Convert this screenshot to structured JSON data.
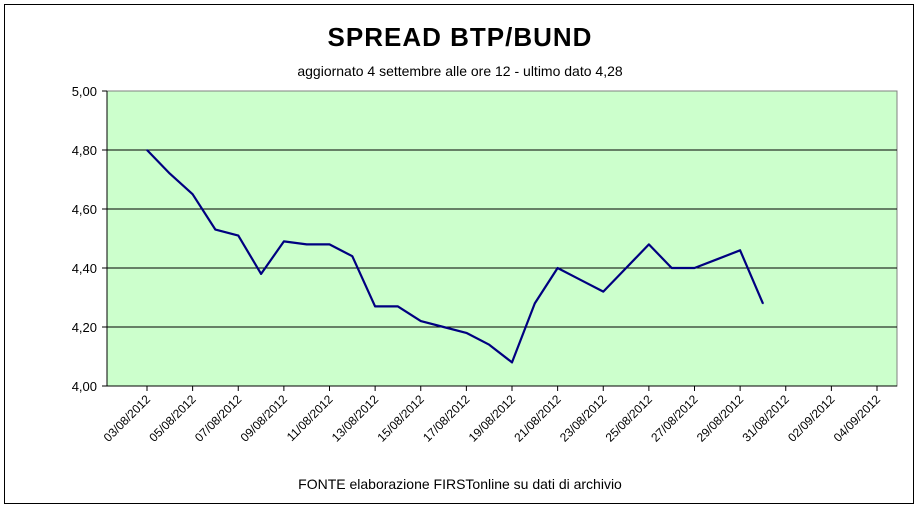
{
  "chart_data": {
    "type": "line",
    "title": "SPREAD  BTP/BUND",
    "subtitle": "aggiornato 4 settembre alle ore 12 - ultimo dato 4,28",
    "source_note": "FONTE elaborazione FIRSTonline su dati di archivio",
    "xlabel": "",
    "ylabel": "",
    "ylim": [
      4.0,
      5.0
    ],
    "y_ticks": [
      "4,00",
      "4,20",
      "4,40",
      "4,60",
      "4,80",
      "5,00"
    ],
    "x_tick_labels": [
      "03/08/2012",
      "05/08/2012",
      "07/08/2012",
      "09/08/2012",
      "11/08/2012",
      "13/08/2012",
      "15/08/2012",
      "17/08/2012",
      "19/08/2012",
      "21/08/2012",
      "23/08/2012",
      "25/08/2012",
      "27/08/2012",
      "29/08/2012",
      "31/08/2012",
      "02/09/2012",
      "04/09/2012"
    ],
    "grid": true,
    "legend": "none",
    "plot_background": "#ccffcc",
    "line_color": "#000080",
    "series": [
      {
        "points": [
          {
            "x": "03/08/2012",
            "y": 4.8
          },
          {
            "x": "04/08/2012",
            "y": 4.72
          },
          {
            "x": "05/08/2012",
            "y": 4.65
          },
          {
            "x": "06/08/2012",
            "y": 4.53
          },
          {
            "x": "07/08/2012",
            "y": 4.51
          },
          {
            "x": "08/08/2012",
            "y": 4.38
          },
          {
            "x": "09/08/2012",
            "y": 4.49
          },
          {
            "x": "10/08/2012",
            "y": 4.48
          },
          {
            "x": "11/08/2012",
            "y": 4.48
          },
          {
            "x": "12/08/2012",
            "y": 4.44
          },
          {
            "x": "13/08/2012",
            "y": 4.27
          },
          {
            "x": "14/08/2012",
            "y": 4.27
          },
          {
            "x": "15/08/2012",
            "y": 4.22
          },
          {
            "x": "16/08/2012",
            "y": 4.2
          },
          {
            "x": "17/08/2012",
            "y": 4.18
          },
          {
            "x": "18/08/2012",
            "y": 4.14
          },
          {
            "x": "19/08/2012",
            "y": 4.08
          },
          {
            "x": "20/08/2012",
            "y": 4.28
          },
          {
            "x": "21/08/2012",
            "y": 4.4
          },
          {
            "x": "22/08/2012",
            "y": 4.36
          },
          {
            "x": "23/08/2012",
            "y": 4.32
          },
          {
            "x": "24/08/2012",
            "y": 4.4
          },
          {
            "x": "25/08/2012",
            "y": 4.48
          },
          {
            "x": "26/08/2012",
            "y": 4.4
          },
          {
            "x": "27/08/2012",
            "y": 4.4
          },
          {
            "x": "28/08/2012",
            "y": 4.43
          },
          {
            "x": "29/08/2012",
            "y": 4.46
          },
          {
            "x": "30/08/2012",
            "y": 4.28
          }
        ]
      }
    ]
  }
}
